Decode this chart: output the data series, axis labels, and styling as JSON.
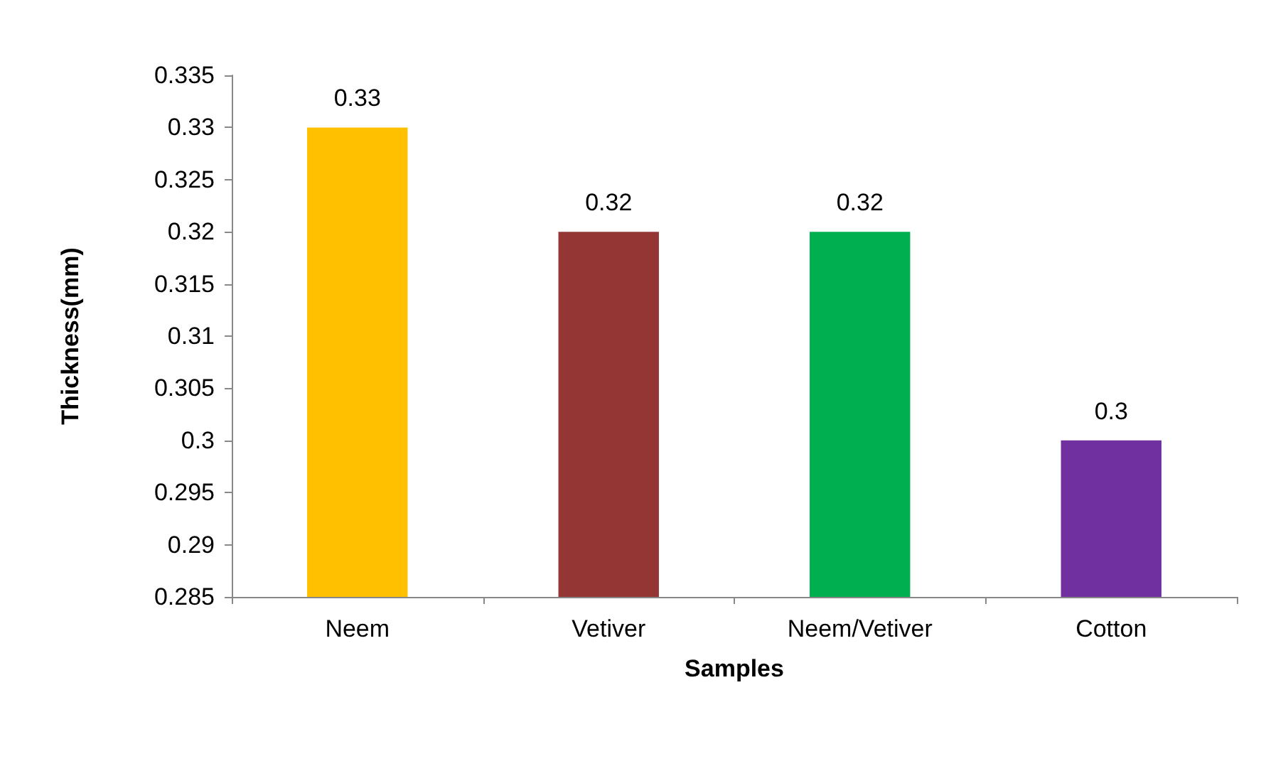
{
  "chart_data": {
    "type": "bar",
    "xlabel": "Samples",
    "ylabel": "Thickness(mm)",
    "categories": [
      "Neem",
      "Vetiver",
      "Neem/Vetiver",
      "Cotton"
    ],
    "values": [
      0.33,
      0.32,
      0.32,
      0.3
    ],
    "colors": [
      "#ffc000",
      "#943634",
      "#00b050",
      "#7030a0"
    ],
    "ylim": [
      0.285,
      0.335
    ],
    "yticks": [
      0.285,
      0.29,
      0.295,
      0.3,
      0.305,
      0.31,
      0.315,
      0.32,
      0.325,
      0.33,
      0.335
    ],
    "data_labels": true,
    "grid": false
  }
}
